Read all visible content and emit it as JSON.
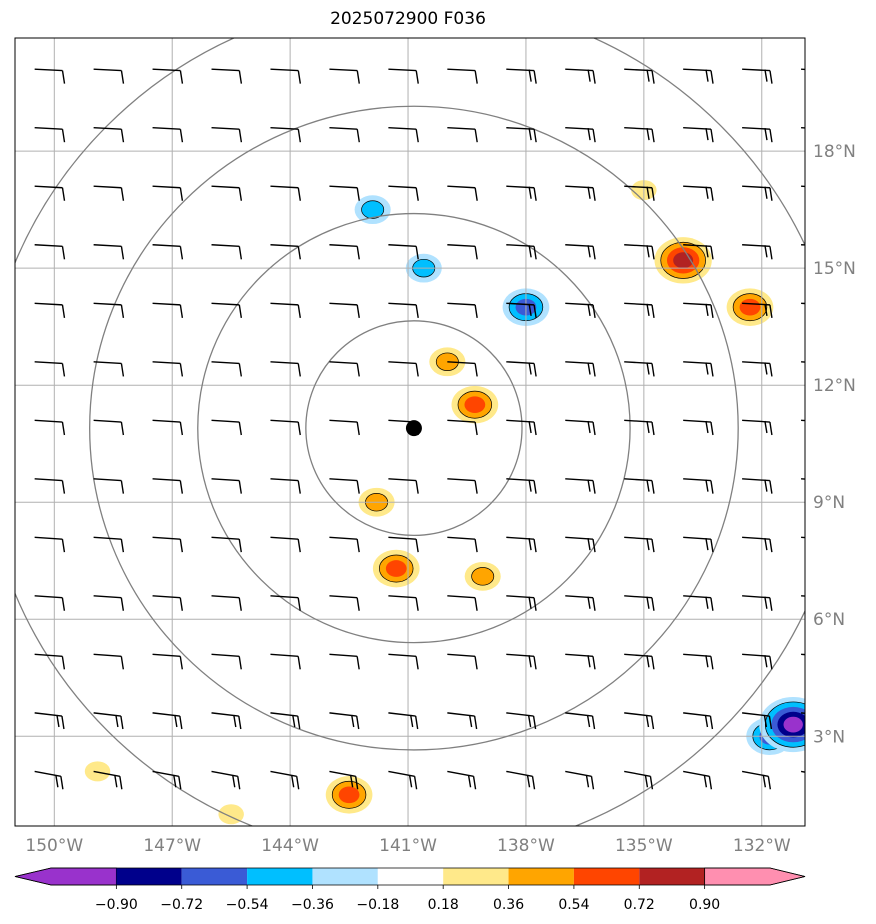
{
  "title": "2025072900 F036",
  "map": {
    "lon_range": [
      -151.0,
      -130.9
    ],
    "lat_range": [
      0.7,
      20.9
    ],
    "lon_ticks": [
      {
        "value": -150,
        "label": "150°W"
      },
      {
        "value": -147,
        "label": "147°W"
      },
      {
        "value": -144,
        "label": "144°W"
      },
      {
        "value": -141,
        "label": "141°W"
      },
      {
        "value": -138,
        "label": "138°W"
      },
      {
        "value": -135,
        "label": "135°W"
      },
      {
        "value": -132,
        "label": "132°W"
      }
    ],
    "lat_ticks": [
      {
        "value": 18,
        "label": "18°N"
      },
      {
        "value": 15,
        "label": "15°N"
      },
      {
        "value": 12,
        "label": "12°N"
      },
      {
        "value": 9,
        "label": "9°N"
      },
      {
        "value": 6,
        "label": "6°N"
      },
      {
        "value": 3,
        "label": "3°N"
      }
    ],
    "grid": true,
    "storm_center": {
      "lon": -140.85,
      "lat": 10.9
    },
    "range_rings_deg": [
      2.75,
      5.5,
      8.25,
      11.0
    ],
    "ring_color": "#808080",
    "grid_color": "#b0b0b0",
    "wind_barbs": {
      "lons": [
        -150.5,
        -149.0,
        -147.5,
        -146.0,
        -144.5,
        -143.0,
        -141.5,
        -140.0,
        -138.5,
        -137.0,
        -135.5,
        -134.0,
        -132.5,
        -131.0
      ],
      "lats": [
        20.1,
        18.6,
        17.1,
        15.6,
        14.1,
        12.6,
        11.1,
        9.6,
        8.1,
        6.6,
        5.1,
        3.6,
        2.1
      ]
    }
  },
  "shading": {
    "variable_levels": [
      -0.9,
      -0.72,
      -0.54,
      -0.36,
      -0.18,
      0.18,
      0.36,
      0.54,
      0.72,
      0.9
    ],
    "tick_labels": [
      "−0.90",
      "−0.72",
      "−0.54",
      "−0.36",
      "−0.18",
      "0.18",
      "0.36",
      "0.54",
      "0.72",
      "0.90"
    ],
    "colors": [
      "#9932cc",
      "#00008b",
      "#3a5bd6",
      "#00bfff",
      "#b0e2ff",
      "#ffffff",
      "#ffe98a",
      "#ffa500",
      "#ff4500",
      "#b22222",
      "#ff8fb0"
    ]
  },
  "features": {
    "positive": [
      {
        "lon": -134.0,
        "lat": 15.2,
        "level": 0.72
      },
      {
        "lon": -132.3,
        "lat": 14.0,
        "level": 0.54
      },
      {
        "lon": -135.0,
        "lat": 17.0,
        "level": 0.18
      },
      {
        "lon": -140.0,
        "lat": 12.6,
        "level": 0.36
      },
      {
        "lon": -139.3,
        "lat": 11.5,
        "level": 0.54
      },
      {
        "lon": -141.8,
        "lat": 9.0,
        "level": 0.36
      },
      {
        "lon": -141.3,
        "lat": 7.3,
        "level": 0.54
      },
      {
        "lon": -139.1,
        "lat": 7.1,
        "level": 0.36
      },
      {
        "lon": -148.9,
        "lat": 2.1,
        "level": 0.18
      },
      {
        "lon": -142.5,
        "lat": 1.5,
        "level": 0.54
      },
      {
        "lon": -145.5,
        "lat": 1.0,
        "level": 0.18
      }
    ],
    "negative": [
      {
        "lon": -141.9,
        "lat": 16.5,
        "level": -0.36
      },
      {
        "lon": -140.6,
        "lat": 15.0,
        "level": -0.36
      },
      {
        "lon": -138.0,
        "lat": 14.0,
        "level": -0.54
      },
      {
        "lon": -131.8,
        "lat": 3.0,
        "level": -0.54
      },
      {
        "lon": -131.2,
        "lat": 3.3,
        "level": -0.9
      }
    ]
  }
}
